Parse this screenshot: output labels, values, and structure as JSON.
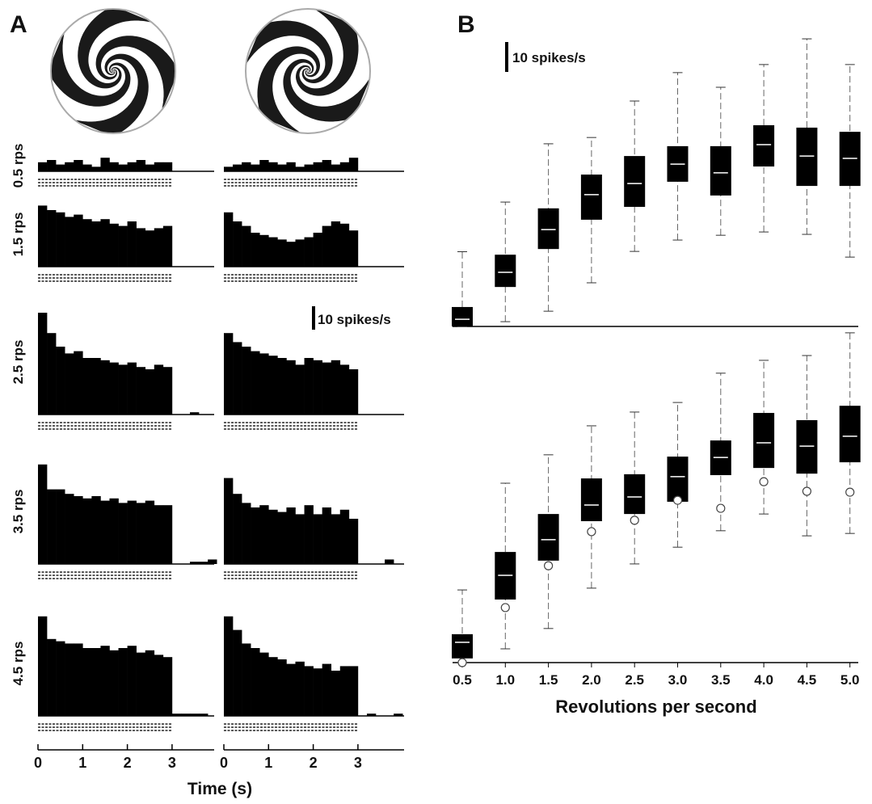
{
  "panel_a": {
    "label": "A",
    "scale_bar": "10 spikes/s",
    "rows": [
      {
        "label": "0.5 rps",
        "left": [
          4,
          5,
          3,
          4,
          5,
          3,
          2,
          6,
          4,
          3,
          4,
          5,
          3,
          4,
          4,
          0,
          0,
          0,
          0,
          0
        ],
        "right": [
          2,
          3,
          4,
          3,
          5,
          4,
          3,
          4,
          2,
          3,
          4,
          5,
          3,
          4,
          6,
          0,
          0,
          0,
          0,
          0
        ]
      },
      {
        "label": "1.5 rps",
        "left": [
          27,
          25,
          24,
          22,
          23,
          21,
          20,
          21,
          19,
          18,
          20,
          17,
          16,
          17,
          18,
          0,
          0,
          0,
          0,
          0
        ],
        "right": [
          24,
          20,
          18,
          15,
          14,
          13,
          12,
          11,
          12,
          13,
          15,
          18,
          20,
          19,
          16,
          0,
          0,
          0,
          0,
          0
        ]
      },
      {
        "label": "2.5 rps",
        "left": [
          45,
          36,
          30,
          27,
          28,
          25,
          25,
          24,
          23,
          22,
          23,
          21,
          20,
          22,
          21,
          0,
          0,
          1,
          0,
          0
        ],
        "right": [
          36,
          32,
          30,
          28,
          27,
          26,
          25,
          24,
          22,
          25,
          24,
          23,
          24,
          22,
          20,
          0,
          0,
          0,
          0,
          0
        ]
      },
      {
        "label": "3.5 rps",
        "left": [
          44,
          33,
          33,
          31,
          30,
          29,
          30,
          28,
          29,
          27,
          28,
          27,
          28,
          26,
          26,
          0,
          0,
          1,
          1,
          2
        ],
        "right": [
          38,
          31,
          27,
          25,
          26,
          24,
          23,
          25,
          22,
          26,
          22,
          25,
          22,
          24,
          20,
          0,
          0,
          0,
          2,
          0
        ]
      },
      {
        "label": "4.5 rps",
        "left": [
          44,
          34,
          33,
          32,
          32,
          30,
          30,
          31,
          29,
          30,
          31,
          28,
          29,
          27,
          26,
          1,
          1,
          1,
          1,
          0
        ],
        "right": [
          44,
          38,
          32,
          30,
          28,
          26,
          25,
          23,
          24,
          22,
          21,
          23,
          20,
          22,
          22,
          0,
          1,
          0,
          0,
          1
        ]
      }
    ],
    "x_ticks": [
      0,
      1,
      2,
      3
    ],
    "x_label": "Time (s)"
  },
  "panel_b": {
    "label": "B",
    "scale_bar": "10 spikes/s",
    "categories": [
      "0.5",
      "1.0",
      "1.5",
      "2.0",
      "2.5",
      "3.0",
      "3.5",
      "4.0",
      "4.5",
      "5.0"
    ],
    "x_label": "Revolutions per second",
    "top": [
      {
        "low": 0,
        "q1": 0,
        "median": 2.4,
        "q3": 6.5,
        "high": 25
      },
      {
        "low": 1.6,
        "q1": 13.2,
        "median": 18.1,
        "q3": 24,
        "high": 41.6
      },
      {
        "low": 5.1,
        "q1": 25.9,
        "median": 32.4,
        "q3": 39.5,
        "high": 61.1
      },
      {
        "low": 14.6,
        "q1": 35.7,
        "median": 44.1,
        "q3": 50.8,
        "high": 63.2
      },
      {
        "low": 25.1,
        "q1": 40,
        "median": 47.8,
        "q3": 57,
        "high": 75.4
      },
      {
        "low": 28.9,
        "q1": 48.4,
        "median": 54.3,
        "q3": 60.3,
        "high": 84.9
      },
      {
        "low": 30.5,
        "q1": 43.8,
        "median": 51.4,
        "q3": 60.3,
        "high": 80
      },
      {
        "low": 31.6,
        "q1": 53.5,
        "median": 60.8,
        "q3": 67.3,
        "high": 87.6
      },
      {
        "low": 30.8,
        "q1": 47,
        "median": 57,
        "q3": 66.5,
        "high": 96.2
      },
      {
        "low": 23.2,
        "q1": 47,
        "median": 56.2,
        "q3": 65.1,
        "high": 87.6
      }
    ],
    "bottom": [
      {
        "low": 0,
        "q1": 1.4,
        "median": 6.8,
        "q3": 9.5,
        "high": 24.3,
        "circle": 0
      },
      {
        "low": 4.6,
        "q1": 21.1,
        "median": 29.2,
        "q3": 37,
        "high": 60,
        "circle": 18.4
      },
      {
        "low": 11.4,
        "q1": 34.1,
        "median": 41.1,
        "q3": 49.7,
        "high": 69.5,
        "circle": 32.4
      },
      {
        "low": 24.9,
        "q1": 47.3,
        "median": 52.7,
        "q3": 61.6,
        "high": 79.2,
        "circle": 43.8
      },
      {
        "low": 33,
        "q1": 49.7,
        "median": 55.4,
        "q3": 63,
        "high": 83.8,
        "circle": 47.6
      },
      {
        "low": 38.6,
        "q1": 53.8,
        "median": 62.2,
        "q3": 68.9,
        "high": 87,
        "circle": 54.3
      },
      {
        "low": 44.1,
        "q1": 62.7,
        "median": 68.6,
        "q3": 74.3,
        "high": 96.8,
        "circle": 51.6
      },
      {
        "low": 49.7,
        "q1": 65.1,
        "median": 73.5,
        "q3": 83.5,
        "high": 101.1,
        "circle": 60.5
      },
      {
        "low": 42.4,
        "q1": 63.2,
        "median": 72.4,
        "q3": 81.1,
        "high": 102.7,
        "circle": 57.3
      },
      {
        "low": 43.2,
        "q1": 67,
        "median": 75.7,
        "q3": 85.9,
        "high": 110.3,
        "circle": 57
      }
    ]
  }
}
